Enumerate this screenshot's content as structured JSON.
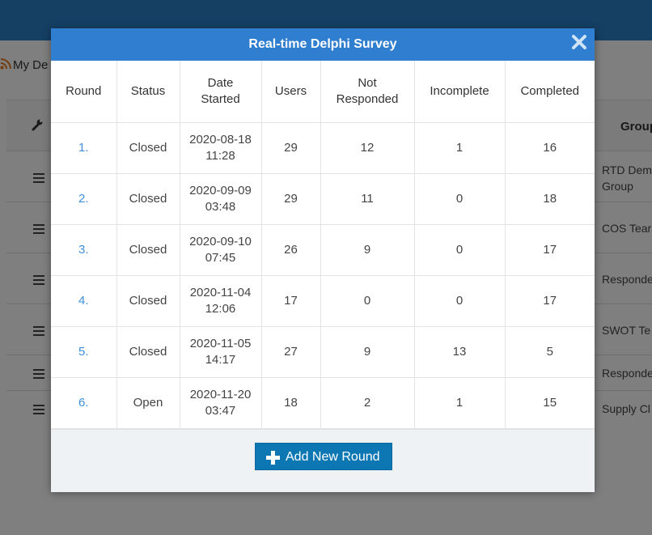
{
  "background": {
    "breadcrumb": "My De",
    "group_header": "Group",
    "rows": [
      {
        "label1": "RTD Dem",
        "label2": "Group"
      },
      {
        "label1": "COS Tear",
        "label2": ""
      },
      {
        "label1": "Responde",
        "label2": ""
      },
      {
        "label1": "SWOT Te",
        "label2": ""
      },
      {
        "label1": "Responde",
        "label2": ""
      },
      {
        "label1": "Supply Cl",
        "label2": ""
      }
    ]
  },
  "modal": {
    "title": "Real-time Delphi Survey",
    "columns": {
      "round": "Round",
      "status": "Status",
      "date_line1": "Date",
      "date_line2": "Started",
      "users": "Users",
      "not_responded_line1": "Not",
      "not_responded_line2": "Responded",
      "incomplete": "Incomplete",
      "completed": "Completed"
    },
    "rows": [
      {
        "round": "1.",
        "status": "Closed",
        "date": "2020-08-18",
        "time": "11:28",
        "users": "29",
        "not_responded": "12",
        "incomplete": "1",
        "completed": "16"
      },
      {
        "round": "2.",
        "status": "Closed",
        "date": "2020-09-09",
        "time": "03:48",
        "users": "29",
        "not_responded": "11",
        "incomplete": "0",
        "completed": "18"
      },
      {
        "round": "3.",
        "status": "Closed",
        "date": "2020-09-10",
        "time": "07:45",
        "users": "26",
        "not_responded": "9",
        "incomplete": "0",
        "completed": "17"
      },
      {
        "round": "4.",
        "status": "Closed",
        "date": "2020-11-04",
        "time": "12:06",
        "users": "17",
        "not_responded": "0",
        "incomplete": "0",
        "completed": "17"
      },
      {
        "round": "5.",
        "status": "Closed",
        "date": "2020-11-05",
        "time": "14:17",
        "users": "27",
        "not_responded": "9",
        "incomplete": "13",
        "completed": "5"
      },
      {
        "round": "6.",
        "status": "Open",
        "date": "2020-11-20",
        "time": "03:47",
        "users": "18",
        "not_responded": "2",
        "incomplete": "1",
        "completed": "15"
      }
    ],
    "add_button": "Add New Round"
  },
  "icons": {
    "close": "close-icon",
    "plus": "plus-icon",
    "menu": "menu-icon",
    "wrench": "wrench-icon",
    "rss": "rss-icon"
  },
  "colors": {
    "header_blue": "#2f7ecf",
    "link_blue": "#3d8fdb",
    "button_blue": "#0d77b3"
  }
}
